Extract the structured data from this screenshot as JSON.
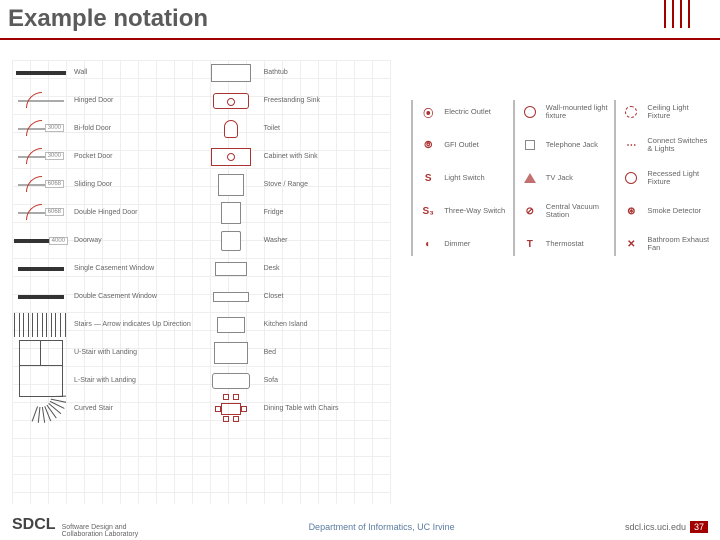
{
  "title": "Example notation",
  "colors": {
    "accent": "#a00000",
    "sym": "#a33333",
    "text_muted": "#666666",
    "grid": "#eeeeee"
  },
  "arch_legend": {
    "col1": [
      {
        "label": "Wall",
        "sym": "wall"
      },
      {
        "label": "Hinged Door",
        "sym": "door",
        "tag": ""
      },
      {
        "label": "Bi-fold Door",
        "sym": "door",
        "tag": "3000"
      },
      {
        "label": "Pocket Door",
        "sym": "door",
        "tag": "3000"
      },
      {
        "label": "Sliding Door",
        "sym": "door",
        "tag": "6068"
      },
      {
        "label": "Double Hinged Door",
        "sym": "door",
        "tag": "6068"
      },
      {
        "label": "Doorway",
        "sym": "win",
        "tag": "4000"
      },
      {
        "label": "Single Casement Window",
        "sym": "win"
      },
      {
        "label": "Double Casement Window",
        "sym": "win"
      },
      {
        "label": "Stairs — Arrow indicates Up Direction",
        "sym": "stairs"
      },
      {
        "label": "U-Stair with Landing",
        "sym": "ustair"
      },
      {
        "label": "L-Stair with Landing",
        "sym": "lstair"
      },
      {
        "label": "Curved Stair",
        "sym": "curved"
      }
    ],
    "col2": [
      {
        "label": "Bathtub",
        "sym": "cab"
      },
      {
        "label": "Freestanding Sink",
        "sym": "sink"
      },
      {
        "label": "Toilet",
        "sym": "toilet"
      },
      {
        "label": "Cabinet with Sink",
        "sym": "cabsink"
      },
      {
        "label": "Stove / Range",
        "sym": "range"
      },
      {
        "label": "Fridge",
        "sym": "fridge"
      },
      {
        "label": "Washer",
        "sym": "washer"
      },
      {
        "label": "Desk",
        "sym": "desk"
      },
      {
        "label": "Closet",
        "sym": "closet"
      },
      {
        "label": "Kitchen Island",
        "sym": "kit-isl"
      },
      {
        "label": "Bed",
        "sym": "bed"
      },
      {
        "label": "Sofa",
        "sym": "sofa"
      },
      {
        "label": "Dining Table with Chairs",
        "sym": "dining"
      }
    ]
  },
  "electrical_legend": {
    "col1": [
      {
        "label": "Electric Outlet",
        "glyph": "⦿"
      },
      {
        "label": "GFI Outlet",
        "glyph": "⦾"
      },
      {
        "label": "Light Switch",
        "glyph": "S"
      },
      {
        "label": "Three-Way Switch",
        "glyph": "S₃"
      },
      {
        "label": "Dimmer",
        "glyph": "◐"
      }
    ],
    "col2": [
      {
        "label": "Wall-mounted light fixture",
        "glyph": "◯"
      },
      {
        "label": "Telephone Jack",
        "glyph": "▭"
      },
      {
        "label": "TV Jack",
        "glyph": "△"
      },
      {
        "label": "Central Vacuum Station",
        "glyph": "⊘"
      },
      {
        "label": "Thermostat",
        "glyph": "T"
      }
    ],
    "col3": [
      {
        "label": "Ceiling Light Fixture",
        "glyph": "◌"
      },
      {
        "label": "Connect Switches & Lights",
        "glyph": "⋯"
      },
      {
        "label": "Recessed Light Fixture",
        "glyph": "◯"
      },
      {
        "label": "Smoke Detector",
        "glyph": "⊛"
      },
      {
        "label": "Bathroom Exhaust Fan",
        "glyph": "✕"
      }
    ]
  },
  "footer": {
    "logo": "SDCL",
    "sub1": "Software Design and",
    "sub2": "Collaboration Laboratory",
    "center": "Department of Informatics, UC Irvine",
    "right": "sdcl.ics.uci.edu",
    "page": "37"
  }
}
